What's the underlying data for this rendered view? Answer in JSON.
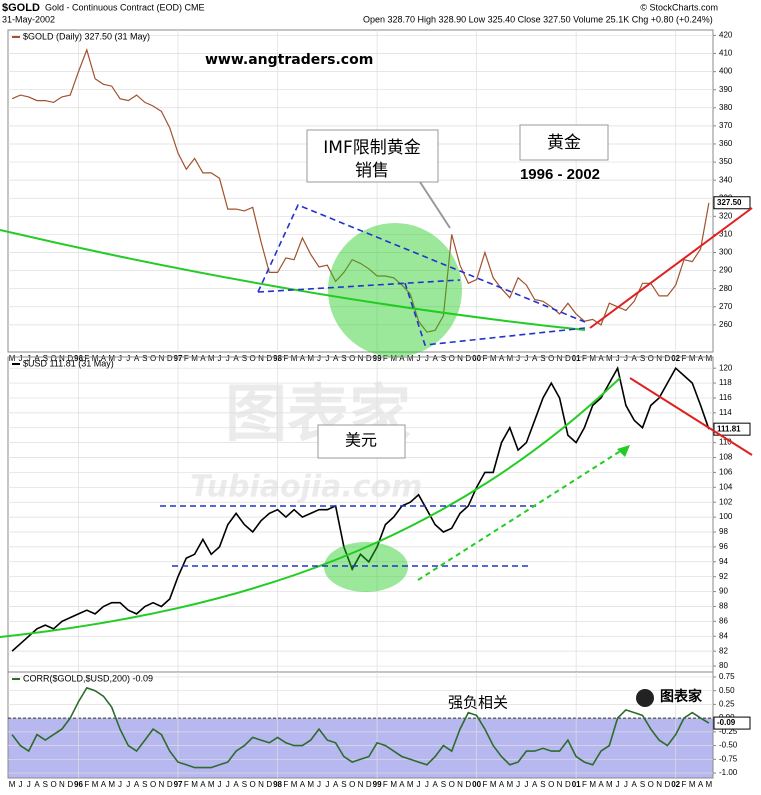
{
  "header": {
    "symbol": "$GOLD",
    "description": "Gold - Continuous Contract (EOD) CME",
    "date": "31-May-2002",
    "quote": "Open 328.70  High 328.90  Low 325.40  Close 327.50  Volume 25.1K  Chg +0.80 (+0.24%)",
    "source": "© StockCharts.com"
  },
  "annotations": {
    "website": "www.angtraders.com",
    "imf_line1": "IMF限制黄金",
    "imf_line2": "销售",
    "gold_label": "黄金",
    "period": "1996 - 2002",
    "usd_label": "美元",
    "corr_note": "强负相关",
    "watermark": "图表家",
    "watermark_url": "Tubiaojia.com",
    "logo": "图表家"
  },
  "chart_data": [
    {
      "type": "line",
      "title": "$GOLD (Daily) 327.50 (31 May)",
      "color": "#a0522d",
      "current_label": "327.50",
      "categories": [
        "M",
        "J",
        "J",
        "A",
        "S",
        "O",
        "N",
        "D",
        "96",
        "F",
        "M",
        "A",
        "M",
        "J",
        "J",
        "A",
        "S",
        "O",
        "N",
        "D",
        "97",
        "F",
        "M",
        "A",
        "M",
        "J",
        "J",
        "A",
        "S",
        "O",
        "N",
        "D",
        "98",
        "F",
        "M",
        "A",
        "M",
        "J",
        "J",
        "A",
        "S",
        "O",
        "N",
        "D",
        "99",
        "F",
        "M",
        "A",
        "M",
        "J",
        "J",
        "A",
        "S",
        "O",
        "N",
        "D",
        "00",
        "F",
        "M",
        "A",
        "M",
        "J",
        "J",
        "A",
        "S",
        "O",
        "N",
        "D",
        "01",
        "F",
        "M",
        "A",
        "M",
        "J",
        "J",
        "A",
        "S",
        "O",
        "N",
        "D",
        "02",
        "F",
        "M",
        "A",
        "M"
      ],
      "values": [
        385,
        387,
        386,
        384,
        384,
        383,
        386,
        387,
        400,
        412,
        396,
        393,
        392,
        385,
        384,
        387,
        383,
        381,
        378,
        369,
        355,
        346,
        352,
        344,
        344,
        341,
        324,
        324,
        323,
        325,
        306,
        289,
        289,
        297,
        296,
        308,
        299,
        292,
        293,
        284,
        289,
        296,
        294,
        291,
        287,
        287,
        286,
        282,
        277,
        262,
        256,
        257,
        265,
        310,
        293,
        283,
        285,
        300,
        286,
        280,
        275,
        286,
        282,
        274,
        273,
        270,
        266,
        272,
        266,
        262,
        263,
        260,
        272,
        270,
        268,
        273,
        283,
        283,
        276,
        276,
        282,
        296,
        295,
        302,
        327.5
      ],
      "ylim": [
        245,
        423
      ],
      "yticks": [
        260,
        270,
        280,
        290,
        300,
        310,
        320,
        330,
        340,
        350,
        360,
        370,
        380,
        390,
        400,
        410,
        420
      ],
      "grid": true
    },
    {
      "type": "line",
      "title": "$USD 111.81 (31 May)",
      "color": "#000000",
      "current_label": "111.81",
      "values": [
        82,
        83,
        84,
        85,
        85.5,
        85,
        86,
        86.5,
        87,
        87.5,
        87,
        88,
        88.5,
        88.5,
        87.5,
        87,
        88,
        88.5,
        88,
        89,
        92,
        94.5,
        95,
        97,
        95,
        96,
        99,
        100.5,
        99,
        98,
        99.5,
        100.5,
        101,
        100,
        101,
        100,
        100.5,
        101,
        101,
        101.5,
        96,
        93,
        95,
        94,
        96,
        99,
        100,
        101.5,
        102,
        103,
        101,
        99,
        98,
        98.5,
        100.5,
        101.5,
        104,
        106,
        106,
        110,
        112,
        109,
        110,
        113,
        116,
        118,
        116,
        111,
        110,
        112,
        115,
        116,
        118,
        120,
        115,
        113,
        112,
        115,
        116,
        118,
        120,
        119,
        118,
        115,
        111.81
      ],
      "ylim": [
        79.2,
        121.5
      ],
      "yticks": [
        80,
        82,
        84,
        86,
        88,
        90,
        92,
        94,
        96,
        98,
        100,
        102,
        104,
        106,
        108,
        110,
        112,
        114,
        116,
        118,
        120
      ],
      "grid": true
    },
    {
      "type": "area-line",
      "title": "CORR($GOLD,$USD,200) -0.09",
      "color": "#2e6b2e",
      "band_color": "#b8b8f0",
      "current_label": "-0.09",
      "categories": [
        "M",
        "J",
        "J",
        "A",
        "S",
        "O",
        "N",
        "D",
        "96",
        "F",
        "M",
        "A",
        "M",
        "J",
        "J",
        "A",
        "S",
        "O",
        "N",
        "D",
        "97",
        "F",
        "M",
        "A",
        "M",
        "J",
        "J",
        "A",
        "S",
        "O",
        "N",
        "D",
        "98",
        "F",
        "M",
        "A",
        "M",
        "J",
        "J",
        "A",
        "S",
        "O",
        "N",
        "D",
        "99",
        "F",
        "M",
        "A",
        "M",
        "J",
        "J",
        "A",
        "S",
        "O",
        "N",
        "D",
        "00",
        "F",
        "M",
        "A",
        "M",
        "J",
        "J",
        "A",
        "S",
        "O",
        "N",
        "D",
        "01",
        "F",
        "M",
        "A",
        "M",
        "J",
        "J",
        "A",
        "S",
        "O",
        "N",
        "D",
        "02",
        "F",
        "M",
        "A",
        "M"
      ],
      "values": [
        -0.3,
        -0.5,
        -0.6,
        -0.3,
        -0.4,
        -0.3,
        -0.2,
        0.0,
        0.3,
        0.55,
        0.5,
        0.4,
        0.2,
        -0.2,
        -0.5,
        -0.6,
        -0.4,
        -0.2,
        -0.3,
        -0.6,
        -0.8,
        -0.85,
        -0.9,
        -0.9,
        -0.9,
        -0.85,
        -0.8,
        -0.6,
        -0.5,
        -0.35,
        -0.4,
        -0.45,
        -0.35,
        -0.45,
        -0.5,
        -0.5,
        -0.4,
        -0.2,
        -0.4,
        -0.45,
        -0.7,
        -0.8,
        -0.75,
        -0.7,
        -0.45,
        -0.5,
        -0.6,
        -0.7,
        -0.75,
        -0.8,
        -0.85,
        -0.7,
        -0.5,
        -0.6,
        -0.2,
        0.1,
        0.05,
        -0.2,
        -0.5,
        -0.7,
        -0.85,
        -0.8,
        -0.6,
        -0.6,
        -0.55,
        -0.6,
        -0.6,
        -0.4,
        -0.7,
        -0.8,
        -0.85,
        -0.6,
        -0.5,
        0.0,
        0.15,
        0.1,
        0.05,
        -0.2,
        -0.4,
        -0.5,
        -0.3,
        0.0,
        0.1,
        0.0,
        -0.09
      ],
      "ylim": [
        -1.09,
        0.84
      ],
      "yticks": [
        {
          "value": 0.75,
          "label": "0.75"
        },
        {
          "value": 0.5,
          "label": "0.50"
        },
        {
          "value": 0.25,
          "label": "0.25"
        },
        {
          "value": 0,
          "label": "0.00"
        },
        {
          "value": -0.25,
          "label": "-0.25"
        },
        {
          "value": -0.5,
          "label": "-0.50"
        },
        {
          "value": -0.75,
          "label": "-0.75"
        },
        {
          "value": -1,
          "label": "-1.00"
        }
      ],
      "grid": true
    }
  ]
}
